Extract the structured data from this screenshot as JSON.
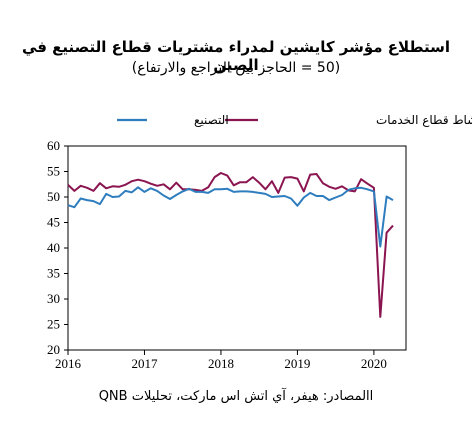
{
  "chart_data": {
    "type": "line",
    "title": "استطلاع مؤشر كايشين لمدراء مشتريات قطاع التصنيع في الصين",
    "subtitle": "(50 = الحاجز بين التراجع والارتفاع)",
    "source": "االمصادر: هيفر، آي اتش اس ماركت، تحليلات QNB",
    "ylim": [
      20,
      60
    ],
    "yticks": [
      20,
      25,
      30,
      35,
      40,
      45,
      50,
      55,
      60
    ],
    "xlim": [
      2016,
      2020.42
    ],
    "xticks": [
      2016,
      2017,
      2018,
      2019,
      2020
    ],
    "grid": false,
    "legend": "top",
    "series": [
      {
        "name": "التصنيع",
        "color": "#2e7dbf",
        "start": 2016,
        "values": [
          48.4,
          48.0,
          49.7,
          49.4,
          49.2,
          48.6,
          50.6,
          50.0,
          50.1,
          51.2,
          50.9,
          51.9,
          51.0,
          51.7,
          51.2,
          50.3,
          49.6,
          50.4,
          51.1,
          51.6,
          51.0,
          51.0,
          50.8,
          51.5,
          51.5,
          51.6,
          51.0,
          51.1,
          51.1,
          51.0,
          50.8,
          50.6,
          50.0,
          50.1,
          50.2,
          49.7,
          48.3,
          49.9,
          50.8,
          50.2,
          50.2,
          49.4,
          49.9,
          50.4,
          51.4,
          51.7,
          51.8,
          51.5,
          51.1,
          40.3,
          50.1,
          49.4
        ]
      },
      {
        "name": "نشاط قطاع الخدمات",
        "color": "#8b1550",
        "start": 2016,
        "values": [
          52.4,
          51.2,
          52.2,
          51.8,
          51.2,
          52.7,
          51.7,
          52.1,
          52.0,
          52.4,
          53.1,
          53.4,
          53.1,
          52.6,
          52.2,
          52.5,
          51.5,
          52.8,
          51.5,
          51.5,
          51.4,
          51.2,
          51.9,
          53.9,
          54.7,
          54.2,
          52.3,
          52.9,
          52.9,
          53.9,
          52.8,
          51.5,
          53.1,
          50.8,
          53.8,
          53.9,
          53.6,
          51.1,
          54.4,
          54.5,
          52.7,
          52.0,
          51.6,
          52.1,
          51.3,
          51.1,
          53.5,
          52.6,
          51.8,
          26.5,
          43.0,
          44.4
        ]
      }
    ]
  }
}
